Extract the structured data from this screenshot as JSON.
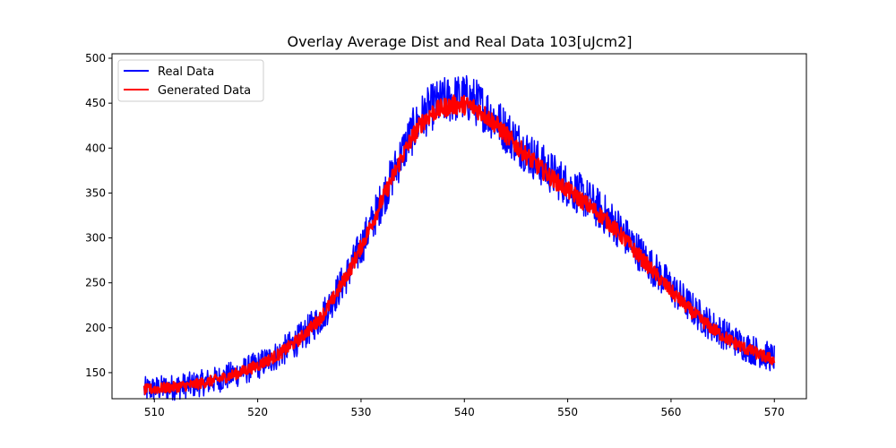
{
  "chart_data": {
    "type": "line",
    "title": "Overlay Average Dist and Real Data 103[uJcm2]",
    "xlabel": "",
    "ylabel": "",
    "xlim": [
      505.9,
      573.1
    ],
    "ylim": [
      121,
      505
    ],
    "x_ticks": [
      510,
      520,
      530,
      540,
      550,
      560,
      570
    ],
    "y_ticks": [
      150,
      200,
      250,
      300,
      350,
      400,
      450,
      500
    ],
    "grid": false,
    "legend_position": "top-left",
    "x_range": [
      509,
      570
    ],
    "series": [
      {
        "name": "Real Data",
        "color": "#0000ff",
        "noise_amplitude": 22,
        "points": [
          [
            509,
            131
          ],
          [
            510,
            132
          ],
          [
            512,
            134
          ],
          [
            514,
            137
          ],
          [
            516,
            142
          ],
          [
            518,
            149
          ],
          [
            520,
            158
          ],
          [
            522,
            170
          ],
          [
            524,
            187
          ],
          [
            526,
            210
          ],
          [
            527,
            226
          ],
          [
            528,
            246
          ],
          [
            529,
            266
          ],
          [
            530,
            290
          ],
          [
            531,
            315
          ],
          [
            532,
            342
          ],
          [
            533,
            368
          ],
          [
            534,
            395
          ],
          [
            535,
            418
          ],
          [
            536,
            436
          ],
          [
            537,
            447
          ],
          [
            538,
            452
          ],
          [
            539,
            455
          ],
          [
            540,
            456
          ],
          [
            541,
            452
          ],
          [
            542,
            443
          ],
          [
            543,
            432
          ],
          [
            544,
            420
          ],
          [
            545,
            408
          ],
          [
            546,
            397
          ],
          [
            547,
            386
          ],
          [
            548,
            376
          ],
          [
            549,
            367
          ],
          [
            550,
            358
          ],
          [
            551,
            350
          ],
          [
            552,
            342
          ],
          [
            553,
            332
          ],
          [
            554,
            322
          ],
          [
            555,
            310
          ],
          [
            556,
            296
          ],
          [
            557,
            283
          ],
          [
            558,
            270
          ],
          [
            559,
            257
          ],
          [
            560,
            245
          ],
          [
            561,
            233
          ],
          [
            562,
            222
          ],
          [
            563,
            211
          ],
          [
            564,
            202
          ],
          [
            565,
            194
          ],
          [
            566,
            187
          ],
          [
            567,
            180
          ],
          [
            568,
            175
          ],
          [
            569,
            170
          ],
          [
            570,
            166
          ]
        ]
      },
      {
        "name": "Generated Data",
        "color": "#ff0000",
        "noise_amplitude": 9,
        "points": [
          [
            509,
            131
          ],
          [
            510,
            132
          ],
          [
            512,
            134
          ],
          [
            514,
            137
          ],
          [
            516,
            142
          ],
          [
            518,
            149
          ],
          [
            520,
            158
          ],
          [
            522,
            170
          ],
          [
            524,
            187
          ],
          [
            526,
            210
          ],
          [
            527,
            226
          ],
          [
            528,
            246
          ],
          [
            529,
            266
          ],
          [
            530,
            290
          ],
          [
            531,
            315
          ],
          [
            532,
            341
          ],
          [
            533,
            366
          ],
          [
            534,
            391
          ],
          [
            535,
            413
          ],
          [
            536,
            430
          ],
          [
            537,
            440
          ],
          [
            538,
            445
          ],
          [
            539,
            448
          ],
          [
            540,
            448
          ],
          [
            541,
            445
          ],
          [
            542,
            437
          ],
          [
            543,
            427
          ],
          [
            544,
            415
          ],
          [
            545,
            403
          ],
          [
            546,
            392
          ],
          [
            547,
            381
          ],
          [
            548,
            371
          ],
          [
            549,
            362
          ],
          [
            550,
            353
          ],
          [
            551,
            345
          ],
          [
            552,
            336
          ],
          [
            553,
            327
          ],
          [
            554,
            317
          ],
          [
            555,
            305
          ],
          [
            556,
            292
          ],
          [
            557,
            279
          ],
          [
            558,
            266
          ],
          [
            559,
            253
          ],
          [
            560,
            241
          ],
          [
            561,
            229
          ],
          [
            562,
            218
          ],
          [
            563,
            208
          ],
          [
            564,
            199
          ],
          [
            565,
            191
          ],
          [
            566,
            184
          ],
          [
            567,
            178
          ],
          [
            568,
            173
          ],
          [
            569,
            168
          ],
          [
            570,
            164
          ]
        ]
      }
    ]
  }
}
